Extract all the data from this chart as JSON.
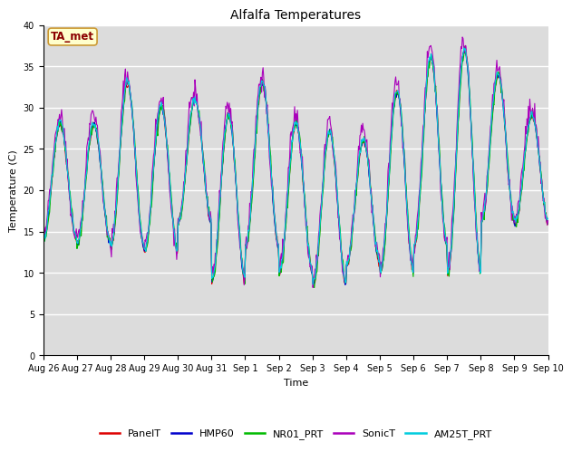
{
  "title": "Alfalfa Temperatures",
  "xlabel": "Time",
  "ylabel": "Temperature (C)",
  "ylim": [
    0,
    40
  ],
  "annotation_text": "TA_met",
  "annotation_color": "#8B0000",
  "annotation_bg": "#FFFFCC",
  "annotation_border": "#CC9933",
  "series": [
    "PanelT",
    "HMP60",
    "NR01_PRT",
    "SonicT",
    "AM25T_PRT"
  ],
  "colors": [
    "#DD0000",
    "#0000CC",
    "#00BB00",
    "#AA00BB",
    "#00CCDD"
  ],
  "bg_color": "#DCDCDC",
  "x_tick_labels": [
    "Aug 26",
    "Aug 27",
    "Aug 28",
    "Aug 29",
    "Aug 30",
    "Aug 31",
    "Sep 1",
    "Sep 2",
    "Sep 3",
    "Sep 4",
    "Sep 5",
    "Sep 6",
    "Sep 7",
    "Sep 8",
    "Sep 9",
    "Sep 10"
  ],
  "n_days": 15,
  "samples_per_day": 48,
  "daily_mins": [
    14.0,
    13.5,
    13.0,
    12.5,
    16.0,
    9.0,
    13.0,
    10.0,
    8.5,
    11.0,
    10.0,
    13.0,
    10.0,
    16.0,
    16.0
  ],
  "daily_maxs": [
    28.0,
    28.0,
    33.0,
    30.0,
    31.0,
    29.0,
    33.0,
    28.0,
    27.0,
    26.0,
    32.0,
    36.0,
    37.0,
    34.0,
    29.0
  ],
  "font_family": "DejaVu Sans",
  "title_fontsize": 10,
  "axis_label_fontsize": 8,
  "tick_fontsize": 7,
  "legend_fontsize": 8
}
